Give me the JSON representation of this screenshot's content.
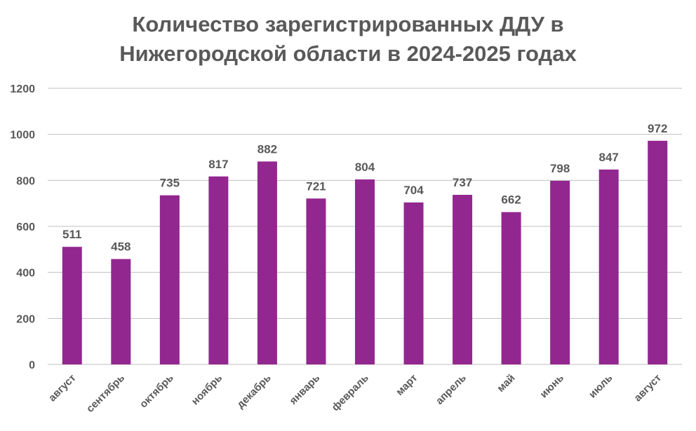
{
  "chart_data": {
    "type": "bar",
    "title_line1": "Количество зарегистрированных ДДУ в",
    "title_line2": "Нижегородской области в 2024-2025 годах",
    "categories": [
      "август",
      "сентябрь",
      "октябрь",
      "ноябрь",
      "декабрь",
      "январь",
      "февраль",
      "март",
      "апрель",
      "май",
      "июнь",
      "июль",
      "август"
    ],
    "values": [
      511,
      458,
      735,
      817,
      882,
      721,
      804,
      704,
      737,
      662,
      798,
      847,
      972
    ],
    "ylim": [
      0,
      1200
    ],
    "yticks": [
      0,
      200,
      400,
      600,
      800,
      1000,
      1200
    ],
    "grid": true,
    "legend": "none",
    "bar_color": "#92278F",
    "grid_color": "#BFBFBF",
    "text_color": "#595959"
  }
}
